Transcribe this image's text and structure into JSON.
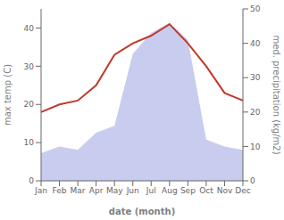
{
  "chart_data": {
    "type": "line",
    "xlabel": "date (month)",
    "ylabel": "max temp (C)",
    "y2label": "med. precipitation (kg/m2)",
    "categories": [
      "Jan",
      "Feb",
      "Mar",
      "Apr",
      "May",
      "Jun",
      "Jul",
      "Aug",
      "Sep",
      "Oct",
      "Nov",
      "Dec"
    ],
    "series": [
      {
        "type": "line",
        "color": "#c0392b",
        "values": [
          18,
          20,
          21,
          25,
          33,
          36,
          38,
          41,
          36,
          30,
          23,
          21
        ]
      },
      {
        "type": "area",
        "axis": "y2",
        "color": "#b0b8e8",
        "values": [
          8,
          10,
          9,
          14,
          16,
          37,
          43,
          46,
          41,
          12,
          10,
          9
        ]
      }
    ],
    "ylim": [
      0,
      45
    ],
    "yticks": [
      0,
      10,
      20,
      30,
      40
    ],
    "y2lim": [
      0,
      50
    ],
    "y2ticks": [
      0,
      10,
      20,
      30,
      40,
      50
    ],
    "grid": false
  }
}
